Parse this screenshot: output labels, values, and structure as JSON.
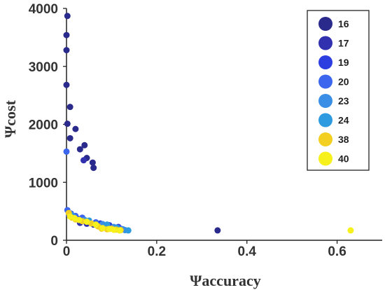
{
  "chart_data": {
    "type": "scatter",
    "title": "",
    "xlabel": "Ψaccuracy",
    "ylabel": "Ψcost",
    "xlim": [
      0,
      0.7
    ],
    "ylim": [
      0,
      4000
    ],
    "x_ticks": [
      "0",
      "0.2",
      "0.4",
      "0.6"
    ],
    "y_ticks": [
      "0",
      "1000",
      "2000",
      "3000",
      "4000"
    ],
    "grid": false,
    "legend_position": "top-right",
    "series": [
      {
        "name": "16",
        "color": "#2a2a8c",
        "points": [
          [
            0.002,
            3870
          ],
          [
            0.0,
            3540
          ],
          [
            0.0,
            3280
          ],
          [
            0.0,
            2680
          ],
          [
            0.008,
            2300
          ],
          [
            0.002,
            2010
          ],
          [
            0.02,
            1920
          ],
          [
            0.008,
            1760
          ],
          [
            0.03,
            1570
          ],
          [
            0.04,
            1640
          ],
          [
            0.045,
            1420
          ],
          [
            0.058,
            1340
          ],
          [
            0.06,
            1250
          ],
          [
            0.335,
            170
          ]
        ]
      },
      {
        "name": "17",
        "color": "#3131b0",
        "points": [
          [
            0.038,
            1380
          ],
          [
            0.03,
            300
          ],
          [
            0.045,
            285
          ],
          [
            0.06,
            270
          ],
          [
            0.07,
            255
          ],
          [
            0.085,
            240
          ],
          [
            0.1,
            225
          ],
          [
            0.11,
            210
          ]
        ]
      },
      {
        "name": "19",
        "color": "#2c3ee0",
        "points": [
          [
            0.006,
            430
          ],
          [
            0.015,
            400
          ],
          [
            0.025,
            370
          ],
          [
            0.05,
            320
          ],
          [
            0.075,
            290
          ],
          [
            0.095,
            260
          ],
          [
            0.115,
            230
          ]
        ]
      },
      {
        "name": "20",
        "color": "#3d66ee",
        "points": [
          [
            0.0,
            1530
          ],
          [
            0.002,
            520
          ],
          [
            0.01,
            460
          ],
          [
            0.02,
            420
          ],
          [
            0.035,
            390
          ],
          [
            0.065,
            310
          ],
          [
            0.12,
            200
          ]
        ]
      },
      {
        "name": "23",
        "color": "#3a8ee6",
        "points": [
          [
            0.015,
            410
          ],
          [
            0.04,
            350
          ],
          [
            0.08,
            280
          ],
          [
            0.105,
            230
          ],
          [
            0.125,
            190
          ],
          [
            0.13,
            175
          ]
        ]
      },
      {
        "name": "24",
        "color": "#2e9be0",
        "points": [
          [
            0.01,
            440
          ],
          [
            0.05,
            340
          ],
          [
            0.09,
            270
          ],
          [
            0.112,
            215
          ],
          [
            0.137,
            170
          ]
        ]
      },
      {
        "name": "38",
        "color": "#f2cf21",
        "points": [
          [
            0.005,
            470
          ],
          [
            0.012,
            390
          ],
          [
            0.02,
            360
          ],
          [
            0.035,
            330
          ],
          [
            0.055,
            290
          ],
          [
            0.07,
            240
          ],
          [
            0.078,
            200
          ],
          [
            0.09,
            190
          ],
          [
            0.1,
            200
          ],
          [
            0.11,
            185
          ],
          [
            0.12,
            175
          ]
        ]
      },
      {
        "name": "40",
        "color": "#f6f01c",
        "points": [
          [
            0.008,
            410
          ],
          [
            0.018,
            380
          ],
          [
            0.028,
            350
          ],
          [
            0.045,
            320
          ],
          [
            0.065,
            270
          ],
          [
            0.08,
            210
          ],
          [
            0.095,
            195
          ],
          [
            0.105,
            180
          ],
          [
            0.118,
            170
          ],
          [
            0.63,
            170
          ]
        ]
      }
    ]
  }
}
